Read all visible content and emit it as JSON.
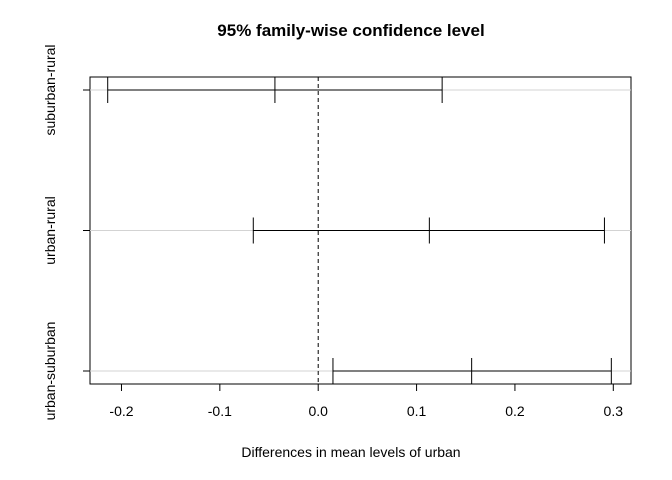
{
  "chart_data": {
    "type": "interval",
    "title": "95% family-wise confidence level",
    "xlabel": "Differences in mean levels of urban",
    "ylabel": "",
    "xlim": [
      -0.232,
      0.318
    ],
    "xticks": [
      -0.2,
      -0.1,
      0.0,
      0.1,
      0.2,
      0.3
    ],
    "xtick_labels": [
      "-0.2",
      "-0.1",
      "0.0",
      "0.1",
      "0.2",
      "0.3"
    ],
    "reference_line": 0.0,
    "grid": "horizontal",
    "comparisons": [
      {
        "label": "suburban-rural",
        "lower": -0.214,
        "estimate": -0.044,
        "upper": 0.126
      },
      {
        "label": "urban-rural",
        "lower": -0.066,
        "estimate": 0.113,
        "upper": 0.291
      },
      {
        "label": "urban-suburban",
        "lower": 0.015,
        "estimate": 0.156,
        "upper": 0.298
      }
    ]
  }
}
